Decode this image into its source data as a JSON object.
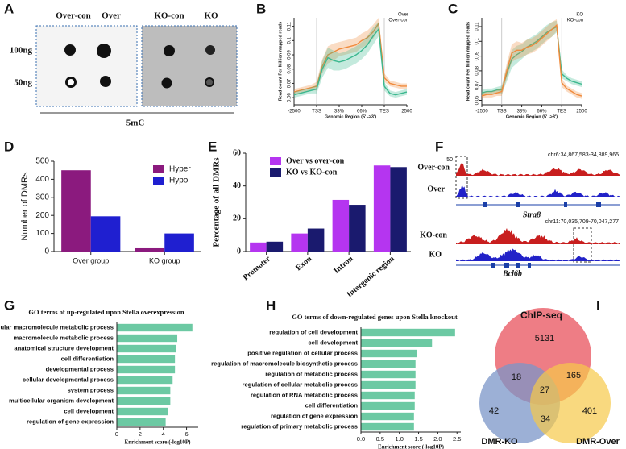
{
  "panel_labels": [
    "A",
    "B",
    "C",
    "D",
    "E",
    "F",
    "G",
    "H",
    "I"
  ],
  "dot_blot": {
    "columns": [
      "Over-con",
      "Over",
      "KO-con",
      "KO"
    ],
    "rows": [
      "100ng",
      "50ng"
    ],
    "antibody": "5mC"
  },
  "chart_data": [
    {
      "type": "line",
      "ylabel": "Read count Per Million mapped reads",
      "xlabel": "Genomic Region (5' ->3')",
      "x": [
        0,
        0.25,
        0.5,
        0.75,
        1,
        1.25,
        1.5,
        1.75,
        2,
        2.25,
        2.5,
        2.75,
        3,
        3.25,
        3.5,
        3.75,
        4,
        4.25,
        4.5,
        4.75,
        5
      ],
      "xlim": [
        0,
        5
      ],
      "xticks": [
        {
          "value": 0,
          "label": "-2500"
        },
        {
          "value": 1,
          "label": "TSS"
        },
        {
          "value": 2,
          "label": "33%"
        },
        {
          "value": 3,
          "label": "66%"
        },
        {
          "value": 4,
          "label": "TES"
        },
        {
          "value": 5,
          "label": "2500"
        }
      ],
      "ylim": [
        0.055,
        0.116
      ],
      "yticks": [
        0.06,
        0.07,
        0.08,
        0.09,
        0.1,
        0.11
      ],
      "series": [
        {
          "name": "Over",
          "color": "#f08a3c",
          "values": [
            0.064,
            0.065,
            0.066,
            0.067,
            0.068,
            0.082,
            0.09,
            0.092,
            0.094,
            0.095,
            0.096,
            0.097,
            0.1,
            0.102,
            0.106,
            0.112,
            0.074,
            0.07,
            0.069,
            0.068,
            0.068
          ],
          "errors": [
            0.002,
            0.002,
            0.002,
            0.002,
            0.003,
            0.005,
            0.006,
            0.006,
            0.005,
            0.005,
            0.005,
            0.005,
            0.005,
            0.005,
            0.005,
            0.004,
            0.003,
            0.002,
            0.002,
            0.002,
            0.002
          ]
        },
        {
          "name": "Over-con",
          "color": "#3cb88f",
          "values": [
            0.062,
            0.063,
            0.064,
            0.065,
            0.066,
            0.08,
            0.088,
            0.086,
            0.085,
            0.086,
            0.088,
            0.09,
            0.093,
            0.097,
            0.103,
            0.108,
            0.068,
            0.063,
            0.062,
            0.063,
            0.064
          ],
          "errors": [
            0.002,
            0.002,
            0.002,
            0.002,
            0.003,
            0.006,
            0.007,
            0.007,
            0.006,
            0.006,
            0.006,
            0.006,
            0.006,
            0.006,
            0.006,
            0.005,
            0.003,
            0.002,
            0.002,
            0.002,
            0.002
          ]
        }
      ]
    },
    {
      "type": "line",
      "ylabel": "Read count Per Million mapped reads",
      "xlabel": "Genomic Region (5' ->3')",
      "x": [
        0,
        0.25,
        0.5,
        0.75,
        1,
        1.25,
        1.5,
        1.75,
        2,
        2.25,
        2.5,
        2.75,
        3,
        3.25,
        3.5,
        3.75,
        4,
        4.25,
        4.5,
        4.75,
        5
      ],
      "xlim": [
        0,
        5
      ],
      "xticks": [
        {
          "value": 0,
          "label": "-2500"
        },
        {
          "value": 1,
          "label": "TSS"
        },
        {
          "value": 2,
          "label": "33%"
        },
        {
          "value": 3,
          "label": "66%"
        },
        {
          "value": 4,
          "label": "TES"
        },
        {
          "value": 5,
          "label": "2500"
        }
      ],
      "ylim": [
        0.057,
        0.116
      ],
      "yticks": [
        0.06,
        0.07,
        0.08,
        0.09,
        0.1,
        0.11
      ],
      "series": [
        {
          "name": "KO",
          "color": "#3cb88f",
          "values": [
            0.065,
            0.066,
            0.066,
            0.067,
            0.067,
            0.078,
            0.088,
            0.091,
            0.093,
            0.096,
            0.098,
            0.1,
            0.103,
            0.106,
            0.108,
            0.11,
            0.078,
            0.075,
            0.073,
            0.072,
            0.071
          ],
          "errors": [
            0.002,
            0.002,
            0.002,
            0.002,
            0.003,
            0.005,
            0.006,
            0.006,
            0.005,
            0.005,
            0.005,
            0.005,
            0.005,
            0.005,
            0.005,
            0.004,
            0.003,
            0.002,
            0.002,
            0.002,
            0.002
          ]
        },
        {
          "name": "KO-con",
          "color": "#f08a3c",
          "values": [
            0.063,
            0.064,
            0.064,
            0.065,
            0.066,
            0.08,
            0.092,
            0.094,
            0.094,
            0.096,
            0.097,
            0.099,
            0.102,
            0.105,
            0.108,
            0.111,
            0.072,
            0.068,
            0.066,
            0.064,
            0.063
          ],
          "errors": [
            0.002,
            0.002,
            0.002,
            0.002,
            0.003,
            0.005,
            0.006,
            0.006,
            0.005,
            0.005,
            0.005,
            0.005,
            0.005,
            0.005,
            0.005,
            0.004,
            0.003,
            0.002,
            0.002,
            0.002,
            0.002
          ]
        }
      ]
    },
    {
      "type": "bar",
      "ylabel": "Number of DMRs",
      "categories": [
        "Over group",
        "KO group"
      ],
      "ylim": [
        0,
        500
      ],
      "yticks": [
        0,
        100,
        200,
        300,
        400,
        500
      ],
      "legend": "top-right",
      "series": [
        {
          "name": "Hyper",
          "color": "#8b1a7e",
          "values": [
            450,
            18
          ]
        },
        {
          "name": "Hypo",
          "color": "#1f1fd0",
          "values": [
            195,
            100
          ]
        }
      ]
    },
    {
      "type": "bar",
      "ylabel": "Percentage of all DMRs",
      "categories": [
        "Promoter",
        "Exon",
        "Intron",
        "Intergenic region"
      ],
      "ylim": [
        0,
        60
      ],
      "yticks": [
        0,
        20,
        40,
        60
      ],
      "legend": "top-left",
      "series": [
        {
          "name": "Over vs over-con",
          "color": "#b535f0",
          "values": [
            5.5,
            11,
            31.5,
            52.5
          ]
        },
        {
          "name": "KO vs KO-con",
          "color": "#1a1a6e",
          "values": [
            6,
            14,
            28.5,
            51.5
          ]
        }
      ]
    },
    {
      "type": "barh",
      "title": "GO terms of up-regulated upon Stella overexpression",
      "xlabel": "Enrichment score (-log10P)",
      "color": "#6cc9a3",
      "categories": [
        "cellular macromolecule metabolic process",
        "macromolecule metabolic process",
        "anatomical structure development",
        "cell differentiation",
        "developmental process",
        "cellular developmental process",
        "system process",
        "multicellular organism development",
        "cell development",
        "regulation of gene expression"
      ],
      "values": [
        6.5,
        5.2,
        5.1,
        5.0,
        5.0,
        4.8,
        4.6,
        4.6,
        4.4,
        4.2
      ],
      "xlim": [
        0,
        7
      ],
      "xticks": [
        0,
        2,
        4,
        6
      ]
    },
    {
      "type": "barh",
      "title": "GO terms of down-regulated genes upon Stella knockout",
      "xlabel": "Enrichment score (-log10P)",
      "color": "#6cc9a3",
      "categories": [
        "regulation of cell development",
        "cell development",
        "positive regulation of cellular process",
        "regulation of macromolecule biosynthetic process",
        "regulation of metabolic process",
        "regulation of cellular metabolic process",
        "regulation of RNA metabolic process",
        "cell differentiation",
        "regulation of gene expression",
        "regulation of primary metabolic process"
      ],
      "values": [
        2.45,
        1.85,
        1.45,
        1.42,
        1.42,
        1.42,
        1.4,
        1.4,
        1.38,
        1.38
      ],
      "xlim": [
        0,
        2.6
      ],
      "xticks": [
        {
          "value": 0,
          "label": "0.0"
        },
        0.5,
        {
          "value": 1,
          "label": "1.0"
        },
        1.5,
        {
          "value": 2,
          "label": "2.0"
        },
        2.5
      ]
    }
  ],
  "tracks": {
    "scale": "50",
    "loci": [
      {
        "coords": "chr6:34,867,583-34,889,965",
        "gene": "Stra8",
        "samples": [
          "Over-con",
          "Over"
        ]
      },
      {
        "coords": "chr11:70,035,709-70,047,277",
        "gene": "Bcl6b",
        "samples": [
          "KO-con",
          "KO"
        ]
      }
    ]
  },
  "venn": {
    "sets": [
      "ChIP-seq",
      "DMR-KO",
      "DMR-Over"
    ],
    "regions": [
      5131,
      18,
      165,
      27,
      42,
      34,
      401
    ]
  }
}
